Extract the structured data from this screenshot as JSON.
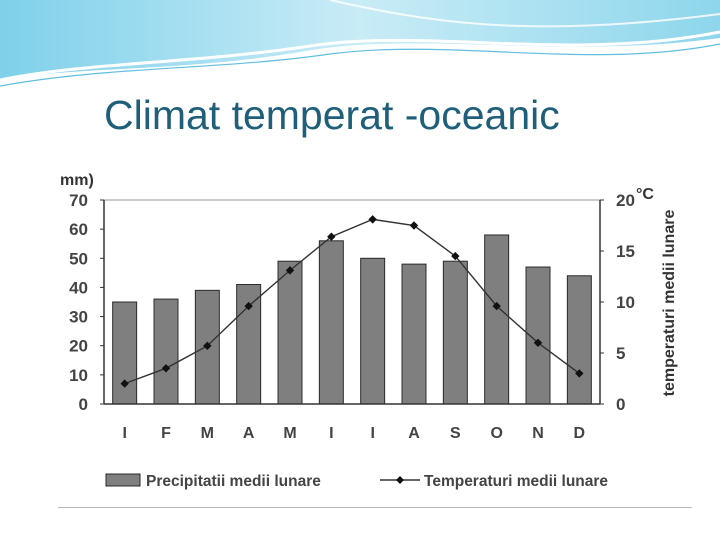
{
  "slide": {
    "title": "Climat temperat -oceanic"
  },
  "chart_data": {
    "type": "bar+line",
    "categories": [
      "I",
      "F",
      "M",
      "A",
      "M",
      "I",
      "I",
      "A",
      "S",
      "O",
      "N",
      "D"
    ],
    "series": [
      {
        "name": "Precipitatii medii lunare",
        "kind": "bar",
        "axis": "left",
        "values": [
          35,
          36,
          39,
          41,
          49,
          56,
          50,
          48,
          49,
          58,
          47,
          44
        ]
      },
      {
        "name": "Temperaturi medii lunare",
        "kind": "line",
        "axis": "right",
        "values": [
          2.0,
          3.5,
          5.7,
          9.6,
          13.1,
          16.4,
          18.1,
          17.5,
          14.5,
          9.6,
          6.0,
          3.0
        ]
      }
    ],
    "y_left": {
      "label": "mm)",
      "ylim": [
        0,
        70
      ],
      "ticks": [
        "0",
        "10",
        "20",
        "30",
        "40",
        "50",
        "60",
        "70"
      ]
    },
    "y_right": {
      "label": "temperaturi medii lunare",
      "unit": "°C",
      "ylim": [
        0,
        20
      ],
      "ticks": [
        "0",
        "5",
        "10",
        "15",
        "20"
      ]
    },
    "legend": "bottom",
    "grid": false,
    "colors": {
      "bar": "#7f7f7f",
      "bar_edge": "#2b2b2b",
      "line": "#333333",
      "marker": "#111111"
    }
  }
}
